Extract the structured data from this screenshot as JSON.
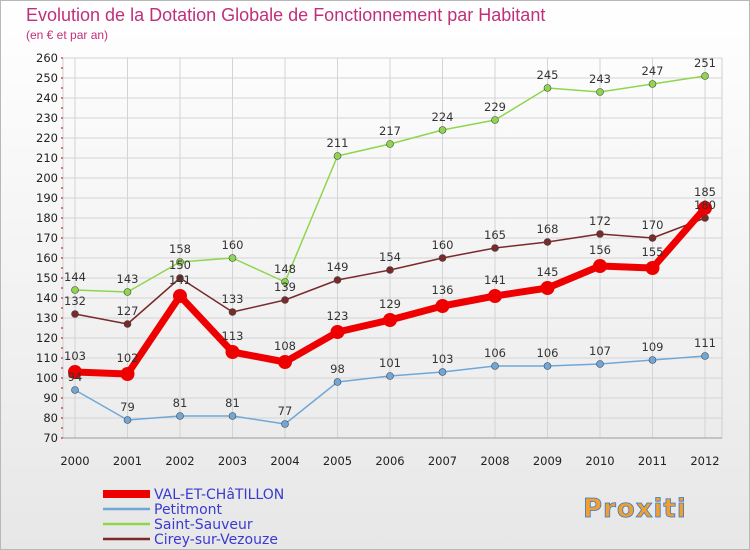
{
  "colors": {
    "title": "#c0307a",
    "legend_text": "#3a3ad0",
    "axis_text": "#222222",
    "grid": "#d4d4d4",
    "axis_tick_red": "#cc0000"
  },
  "chart_data": {
    "type": "line",
    "title": "Evolution de la Dotation Globale de Fonctionnement par Habitant",
    "subtitle": "(en € et par an)",
    "x": [
      "2000",
      "2001",
      "2002",
      "2003",
      "2004",
      "2005",
      "2006",
      "2007",
      "2008",
      "2009",
      "2010",
      "2011",
      "2012"
    ],
    "yticks": [
      70,
      80,
      90,
      100,
      110,
      120,
      130,
      140,
      150,
      160,
      170,
      180,
      190,
      200,
      210,
      220,
      230,
      240,
      250,
      260
    ],
    "ylim": [
      70,
      260
    ],
    "grid": true,
    "legend_position": "bottom-left",
    "series": [
      {
        "name": "VAL-ET-CHâTILLON",
        "color": "#ee0000",
        "width": 7,
        "marker": 7,
        "values": [
          103,
          102,
          141,
          113,
          108,
          123,
          129,
          136,
          141,
          145,
          156,
          155,
          185
        ]
      },
      {
        "name": "Petitmont",
        "color": "#6fa8d8",
        "width": 1.5,
        "marker": 3.5,
        "values": [
          94,
          79,
          81,
          81,
          77,
          98,
          101,
          103,
          106,
          106,
          107,
          109,
          111
        ]
      },
      {
        "name": "Saint-Sauveur",
        "color": "#8ed64d",
        "width": 1.5,
        "marker": 3.5,
        "values": [
          144,
          143,
          158,
          160,
          148,
          211,
          217,
          224,
          229,
          245,
          243,
          247,
          251
        ]
      },
      {
        "name": "Cirey-sur-Vezouze",
        "color": "#7a2a2a",
        "width": 1.5,
        "marker": 3.5,
        "values": [
          132,
          127,
          150,
          133,
          139,
          149,
          154,
          160,
          165,
          168,
          172,
          170,
          180
        ]
      }
    ],
    "data_labels": [
      {
        "series": 2,
        "values": [
          "144",
          "143",
          "158",
          "160",
          "148",
          "211",
          "217",
          "224",
          "229",
          "245",
          "243",
          "247",
          "251"
        ]
      },
      {
        "series": 3,
        "values": [
          "132",
          "127",
          "150",
          "133",
          "139",
          "149",
          "154",
          "160",
          "165",
          "168",
          "172",
          "170",
          "180"
        ]
      },
      {
        "series": 0,
        "values": [
          "103",
          "102",
          "141",
          "113",
          "108",
          "123",
          "129",
          "136",
          "141",
          "145",
          "156",
          "155",
          "185"
        ]
      },
      {
        "series": 1,
        "values": [
          "94",
          "79",
          "81",
          "81",
          "77",
          "98",
          "101",
          "103",
          "106",
          "106",
          "107",
          "109",
          "111"
        ]
      }
    ]
  },
  "logo": {
    "text": "Proxiti"
  }
}
